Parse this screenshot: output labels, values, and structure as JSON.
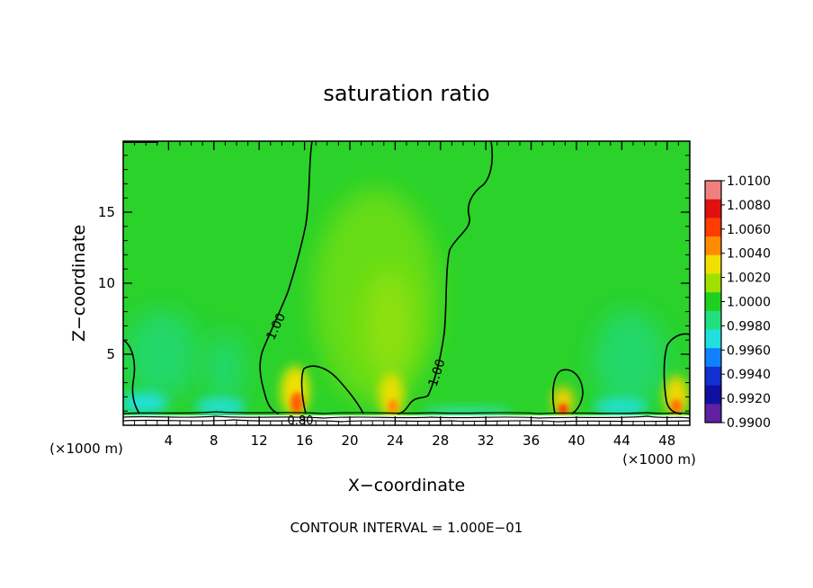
{
  "chart_data": {
    "type": "heatmap",
    "title": "saturation ratio",
    "xlabel": "X−coordinate",
    "ylabel": "Z−coordinate",
    "x_unit_left": "(×1000 m)",
    "x_unit_right": "(×1000 m)",
    "xlim": [
      0,
      50
    ],
    "ylim": [
      0,
      20
    ],
    "x_ticks": [
      4,
      8,
      12,
      16,
      20,
      24,
      28,
      32,
      36,
      40,
      44,
      48
    ],
    "x_minor_step": 1,
    "y_ticks": [
      5,
      10,
      15
    ],
    "y_minor_step": 1,
    "footer": "CONTOUR INTERVAL = 1.000E−01",
    "contour_labels": [
      "1.00",
      "1.00",
      "0.80"
    ],
    "colorbar": {
      "labels": [
        "1.0100",
        "1.0080",
        "1.0060",
        "1.0040",
        "1.0020",
        "1.0000",
        "0.9980",
        "0.9960",
        "0.9940",
        "0.9920",
        "0.9900"
      ],
      "colors": [
        "#f08080",
        "#e01010",
        "#ff3c00",
        "#ff8c00",
        "#f0e000",
        "#a0e000",
        "#20d020",
        "#20e080",
        "#20e0e0",
        "#1080ff",
        "#1030d0",
        "#1010a0",
        "#6020a0"
      ]
    },
    "background_value": 1.0,
    "features": [
      {
        "name": "central-moist-plume",
        "x": 22,
        "z": 9,
        "value": 1.0015
      },
      {
        "name": "peak-16",
        "x": 15.2,
        "z": 1.5,
        "value": 1.006
      },
      {
        "name": "peak-23",
        "x": 23.5,
        "z": 1.5,
        "value": 1.004
      },
      {
        "name": "peak-39",
        "x": 38.8,
        "z": 1.3,
        "value": 1.007
      },
      {
        "name": "peak-48",
        "x": 48.8,
        "z": 1.6,
        "value": 1.005
      },
      {
        "name": "dry-left",
        "x": 2,
        "z": 1.4,
        "value": 0.996
      },
      {
        "name": "dry-9",
        "x": 9,
        "z": 1.3,
        "value": 0.997
      },
      {
        "name": "dry-44",
        "x": 44,
        "z": 1.4,
        "value": 0.9965
      }
    ]
  }
}
